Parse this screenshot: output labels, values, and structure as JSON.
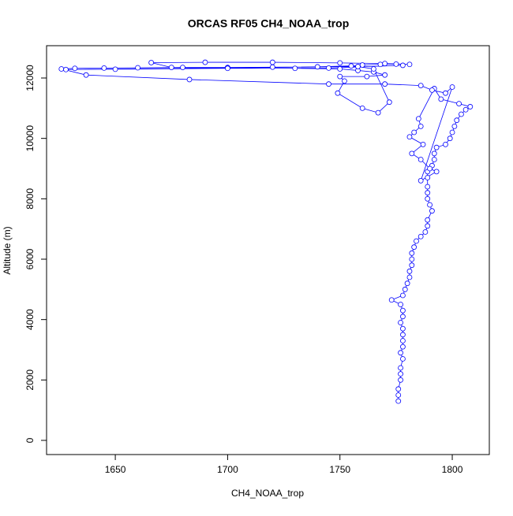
{
  "chart_data": {
    "type": "line",
    "title": "ORCAS RF05 CH4_NOAA_trop",
    "x_label": "CH4_NOAA_trop",
    "y_label": "Altitude (m)",
    "color": "#0000ff",
    "markers": "open-circle",
    "x": [
      1776,
      1776,
      1776,
      1777,
      1777,
      1777,
      1778,
      1777,
      1778,
      1778,
      1778,
      1778,
      1777,
      1778,
      1778,
      1777,
      1773,
      1778,
      1779,
      1780,
      1781,
      1781,
      1782,
      1782,
      1782,
      1783,
      1784,
      1786,
      1788,
      1789,
      1789,
      1791,
      1790,
      1789,
      1789,
      1789,
      1789,
      1789,
      1791,
      1792,
      1792,
      1793,
      1797,
      1799,
      1800,
      1801,
      1802,
      1804,
      1806,
      1808,
      1803,
      1795,
      1792,
      1785,
      1786,
      1783,
      1781,
      1787,
      1782,
      1786,
      1790,
      1793,
      1786,
      1800,
      1797,
      1791,
      1786,
      1770,
      1745,
      1683,
      1637,
      1626,
      1632,
      1645,
      1660,
      1680,
      1700,
      1720,
      1740,
      1755,
      1760,
      1768,
      1775,
      1781,
      1770,
      1750,
      1720,
      1690,
      1666,
      1675,
      1700,
      1730,
      1750,
      1758,
      1765,
      1770,
      1762,
      1750,
      1752,
      1749,
      1760,
      1767,
      1772,
      1765,
      1758,
      1628,
      1650,
      1700,
      1745,
      1778
    ],
    "values": [
      1300,
      1500,
      1700,
      2000,
      2200,
      2400,
      2700,
      2900,
      3100,
      3300,
      3500,
      3700,
      3900,
      4100,
      4300,
      4500,
      4650,
      4800,
      5000,
      5200,
      5400,
      5600,
      5800,
      6000,
      6200,
      6400,
      6600,
      6750,
      6900,
      7100,
      7300,
      7600,
      7800,
      8000,
      8200,
      8400,
      8700,
      8900,
      9100,
      9300,
      9500,
      9700,
      9800,
      10000,
      10200,
      10400,
      10600,
      10800,
      10950,
      11050,
      11150,
      11300,
      11650,
      10650,
      10400,
      10200,
      10050,
      9800,
      9500,
      9300,
      9000,
      8900,
      8600,
      11700,
      11500,
      11600,
      11750,
      11800,
      11800,
      11950,
      12100,
      12300,
      12320,
      12330,
      12340,
      12350,
      12350,
      12360,
      12370,
      12400,
      12430,
      12450,
      12460,
      12450,
      12480,
      12500,
      12520,
      12520,
      12510,
      12350,
      12330,
      12320,
      12300,
      12250,
      12200,
      12100,
      12050,
      12050,
      11900,
      11500,
      11000,
      10850,
      11200,
      12300,
      12380,
      12280,
      12290,
      12320,
      12330,
      12420
    ],
    "xlim": [
      1619.4,
      1816.5
    ],
    "ylim": [
      -470,
      13070
    ],
    "xticks": [
      1650,
      1700,
      1750,
      1800
    ],
    "yticks": [
      0,
      2000,
      4000,
      6000,
      8000,
      10000,
      12000
    ]
  }
}
